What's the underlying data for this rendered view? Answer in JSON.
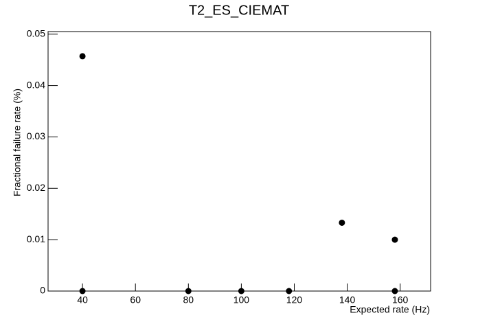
{
  "chart_data": {
    "type": "scatter",
    "title": "T2_ES_CIEMAT",
    "x_label": "Expected rate (Hz)",
    "y_label": "Fractional failure rate (%)",
    "series": [
      {
        "color": "#000000",
        "x": [
          40,
          40,
          80,
          100,
          118,
          138,
          158,
          158
        ],
        "values": [
          0.0457,
          0,
          0,
          0,
          0,
          0.0133,
          0.01,
          0
        ]
      }
    ],
    "xlim": [
      27,
      171.5
    ],
    "ylim": [
      0,
      0.0505
    ],
    "xticks": [
      40,
      60,
      80,
      100,
      120,
      140,
      160
    ],
    "yticks": [
      0,
      0.01,
      0.02,
      0.03,
      0.04,
      0.05
    ]
  }
}
